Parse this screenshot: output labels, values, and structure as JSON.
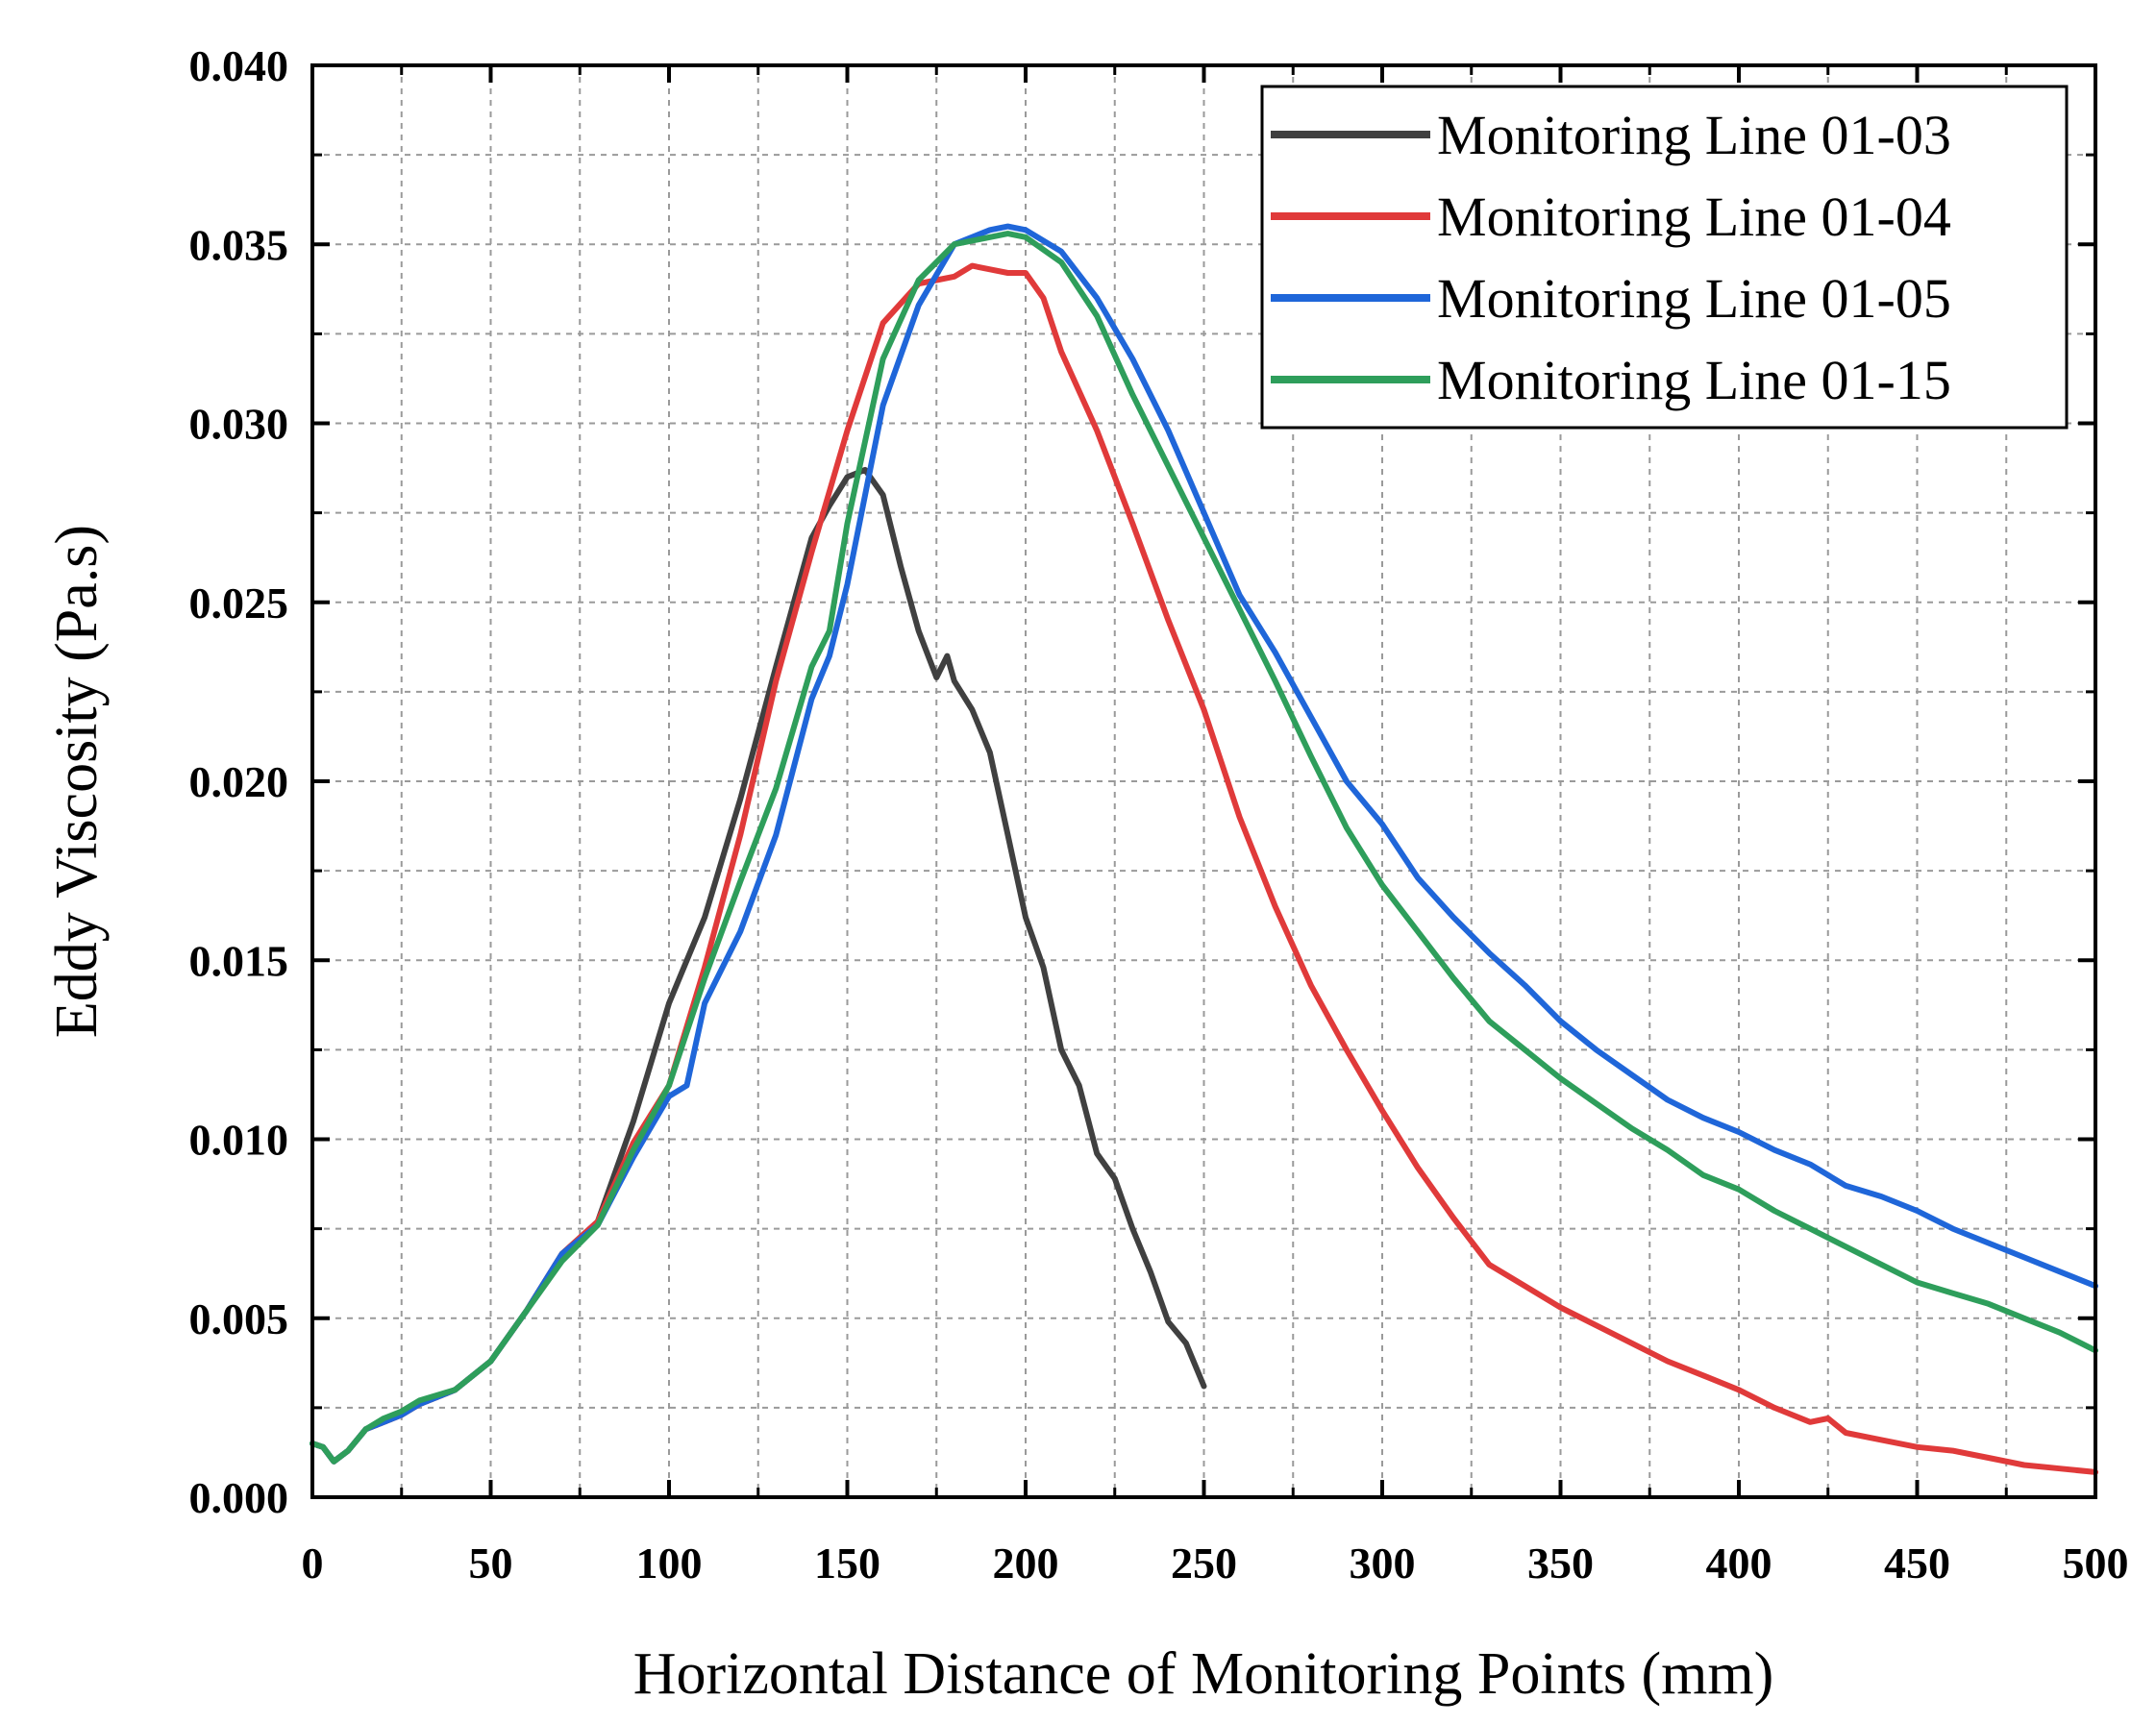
{
  "chart_data": {
    "type": "line",
    "title": "",
    "xlabel": "Horizontal Distance of Monitoring Points (mm)",
    "ylabel": "Eddy Viscosity (Pa.s)",
    "xlim": [
      0,
      500
    ],
    "ylim": [
      0,
      0.04
    ],
    "x_ticks": [
      "0",
      "50",
      "100",
      "150",
      "200",
      "250",
      "300",
      "350",
      "400",
      "450",
      "500"
    ],
    "y_ticks": [
      "0.000",
      "0.005",
      "0.010",
      "0.015",
      "0.020",
      "0.025",
      "0.030",
      "0.035",
      "0.040"
    ],
    "grid": true,
    "legend_position": "top-right",
    "series": [
      {
        "name": "Monitoring Line 01-03",
        "color": "#404040",
        "x": [
          0,
          3,
          6,
          10,
          15,
          20,
          25,
          30,
          40,
          50,
          60,
          70,
          80,
          90,
          100,
          110,
          120,
          130,
          140,
          145,
          150,
          155,
          160,
          165,
          170,
          175,
          178,
          180,
          185,
          190,
          195,
          200,
          205,
          210,
          215,
          220,
          225,
          230,
          235,
          240,
          245,
          250
        ],
        "y": [
          0.0015,
          0.0014,
          0.001,
          0.0013,
          0.0019,
          0.0021,
          0.0023,
          0.0026,
          0.003,
          0.0038,
          0.0052,
          0.0068,
          0.0077,
          0.0105,
          0.0138,
          0.0162,
          0.0195,
          0.0232,
          0.0268,
          0.0277,
          0.0285,
          0.0287,
          0.028,
          0.026,
          0.0242,
          0.0229,
          0.0235,
          0.0228,
          0.022,
          0.0208,
          0.0185,
          0.0162,
          0.0148,
          0.0125,
          0.0115,
          0.0096,
          0.0089,
          0.0075,
          0.0063,
          0.0049,
          0.0043,
          0.0031
        ]
      },
      {
        "name": "Monitoring Line 01-04",
        "color": "#e03a3a",
        "x": [
          0,
          3,
          6,
          10,
          15,
          20,
          25,
          30,
          40,
          50,
          60,
          70,
          80,
          90,
          100,
          110,
          120,
          130,
          140,
          150,
          160,
          170,
          175,
          180,
          185,
          190,
          195,
          200,
          205,
          210,
          220,
          230,
          240,
          250,
          260,
          270,
          280,
          290,
          300,
          310,
          320,
          330,
          340,
          350,
          360,
          370,
          380,
          390,
          400,
          410,
          420,
          425,
          430,
          440,
          450,
          460,
          470,
          480,
          490,
          500
        ],
        "y": [
          0.0015,
          0.0014,
          0.001,
          0.0013,
          0.0019,
          0.0021,
          0.0023,
          0.0026,
          0.003,
          0.0038,
          0.0052,
          0.0068,
          0.0077,
          0.0099,
          0.0115,
          0.0148,
          0.0185,
          0.0228,
          0.0264,
          0.0298,
          0.0328,
          0.0339,
          0.034,
          0.0341,
          0.0344,
          0.0343,
          0.0342,
          0.0342,
          0.0335,
          0.032,
          0.0298,
          0.0272,
          0.0245,
          0.022,
          0.019,
          0.0165,
          0.0143,
          0.0125,
          0.0108,
          0.0092,
          0.0078,
          0.0065,
          0.0059,
          0.0053,
          0.0048,
          0.0043,
          0.0038,
          0.0034,
          0.003,
          0.0025,
          0.0021,
          0.0022,
          0.0018,
          0.0016,
          0.0014,
          0.0013,
          0.0011,
          0.0009,
          0.0008,
          0.0007
        ]
      },
      {
        "name": "Monitoring Line 01-05",
        "color": "#1f66d9",
        "x": [
          0,
          3,
          6,
          10,
          15,
          20,
          25,
          30,
          40,
          50,
          60,
          70,
          80,
          90,
          100,
          105,
          110,
          120,
          130,
          140,
          145,
          150,
          160,
          170,
          180,
          190,
          195,
          200,
          210,
          220,
          230,
          240,
          250,
          260,
          270,
          280,
          290,
          300,
          310,
          320,
          330,
          340,
          350,
          360,
          370,
          380,
          390,
          400,
          410,
          420,
          430,
          440,
          450,
          460,
          470,
          480,
          490,
          500
        ],
        "y": [
          0.0015,
          0.0014,
          0.001,
          0.0013,
          0.0019,
          0.0021,
          0.0023,
          0.0026,
          0.003,
          0.0038,
          0.0052,
          0.0068,
          0.0076,
          0.0095,
          0.0112,
          0.0115,
          0.0138,
          0.0158,
          0.0185,
          0.0223,
          0.0235,
          0.0255,
          0.0305,
          0.0333,
          0.035,
          0.0354,
          0.0355,
          0.0354,
          0.0348,
          0.0335,
          0.0318,
          0.0298,
          0.0275,
          0.0252,
          0.0236,
          0.0218,
          0.02,
          0.0188,
          0.0173,
          0.0162,
          0.0152,
          0.0143,
          0.0133,
          0.0125,
          0.0118,
          0.0111,
          0.0106,
          0.0102,
          0.0097,
          0.0093,
          0.0087,
          0.0084,
          0.008,
          0.0075,
          0.0071,
          0.0067,
          0.0063,
          0.0059
        ]
      },
      {
        "name": "Monitoring Line 01-15",
        "color": "#2e9e5b",
        "x": [
          0,
          3,
          6,
          10,
          15,
          20,
          25,
          30,
          40,
          50,
          60,
          70,
          80,
          90,
          100,
          110,
          120,
          130,
          140,
          145,
          150,
          160,
          170,
          180,
          190,
          195,
          200,
          210,
          220,
          230,
          240,
          250,
          260,
          270,
          280,
          290,
          300,
          310,
          320,
          330,
          340,
          350,
          360,
          370,
          380,
          390,
          400,
          410,
          420,
          430,
          440,
          450,
          460,
          470,
          480,
          490,
          500
        ],
        "y": [
          0.0015,
          0.0014,
          0.001,
          0.0013,
          0.0019,
          0.0022,
          0.0024,
          0.0027,
          0.003,
          0.0038,
          0.0052,
          0.0066,
          0.0076,
          0.0097,
          0.0115,
          0.0145,
          0.0172,
          0.0198,
          0.0232,
          0.0242,
          0.0272,
          0.0318,
          0.034,
          0.035,
          0.0352,
          0.0353,
          0.0352,
          0.0345,
          0.033,
          0.0308,
          0.0288,
          0.0268,
          0.0248,
          0.0228,
          0.0207,
          0.0187,
          0.0171,
          0.0158,
          0.0145,
          0.0133,
          0.0125,
          0.0117,
          0.011,
          0.0103,
          0.0097,
          0.009,
          0.0086,
          0.008,
          0.0075,
          0.007,
          0.0065,
          0.006,
          0.0057,
          0.0054,
          0.005,
          0.0046,
          0.0041
        ]
      }
    ]
  }
}
